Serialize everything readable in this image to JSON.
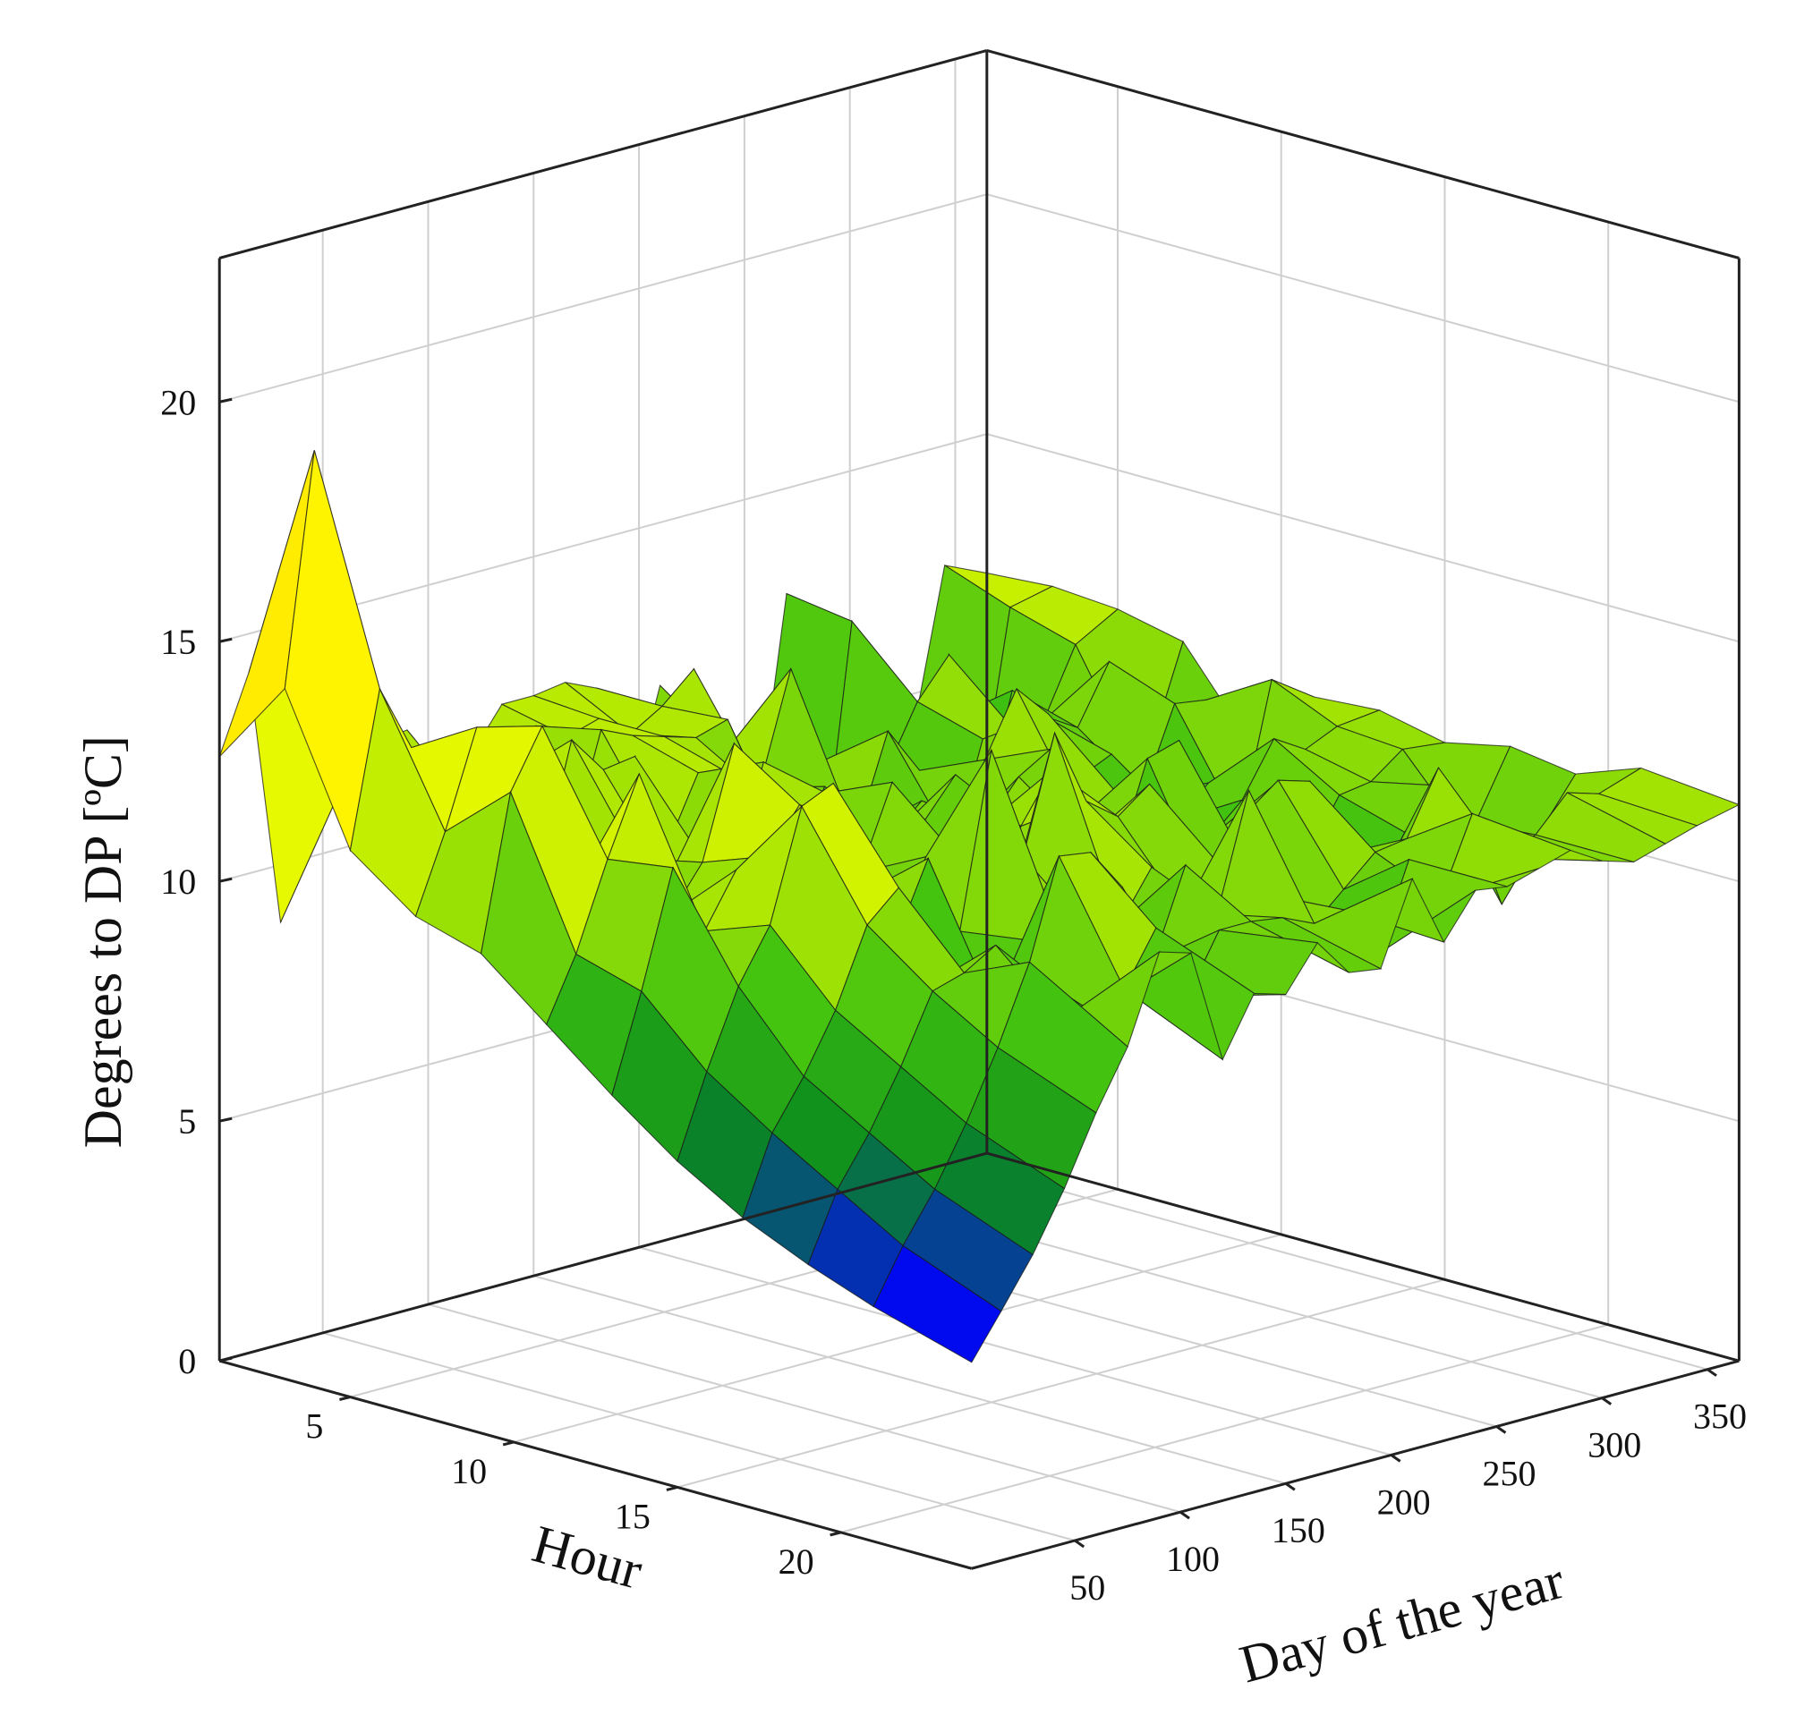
{
  "chart_data": {
    "type": "surface3d",
    "title": "",
    "axes": {
      "x": {
        "label": "Day of the year",
        "ticks": [
          50,
          100,
          150,
          200,
          250,
          300,
          350
        ],
        "range": [
          1,
          365
        ]
      },
      "y": {
        "label": "Hour",
        "ticks": [
          5,
          10,
          15,
          20
        ],
        "range": [
          1,
          24
        ]
      },
      "z": {
        "label": "Degrees to DP [ºC]",
        "ticks": [
          0,
          5,
          10,
          15,
          20
        ],
        "range": [
          0,
          23
        ]
      }
    },
    "colormap": [
      "#1a0050",
      "#0000ff",
      "#0a8a1e",
      "#3cc010",
      "#c8f000",
      "#ffff00",
      "#ff9a00",
      "#ff3a00"
    ],
    "grid": true,
    "surface": {
      "day_samples": [
        1,
        15,
        30,
        45,
        60,
        75,
        90,
        105,
        120,
        135,
        150,
        165,
        180,
        195,
        210,
        225,
        240,
        255,
        270,
        285,
        300,
        315,
        330,
        345,
        365
      ],
      "hour_samples": [
        1,
        3,
        5,
        7,
        9,
        11,
        13,
        15,
        17,
        19,
        21,
        24
      ],
      "values": [
        [
          12.6,
          14.2,
          8.8,
          13.6,
          11.5,
          12.0,
          12.1,
          9.6,
          11.2,
          12.1,
          12.1,
          12.2,
          11.9,
          9.2,
          11.6,
          10.4,
          7.8,
          8.0,
          12.8,
          8.6,
          6.6,
          10.2,
          9.2,
          12.5,
          12.1
        ],
        [
          14.4,
          19.2,
          12.2,
          10.6,
          12.1,
          12.2,
          10.8,
          10.6,
          12.2,
          11.8,
          12.0,
          11.5,
          11.9,
          12.5,
          10.6,
          9.8,
          8.0,
          7.2,
          12.6,
          8.2,
          9.8,
          10.0,
          8.0,
          12.0,
          12.2
        ],
        [
          11.4,
          14.6,
          13.2,
          12.4,
          11.6,
          12.0,
          11.2,
          10.2,
          12.5,
          12.2,
          12.0,
          11.8,
          12.0,
          10.4,
          12.7,
          10.6,
          9.4,
          10.0,
          11.3,
          12.1,
          8.4,
          11.0,
          10.2,
          11.6,
          12.1
        ],
        [
          10.4,
          12.0,
          14.0,
          13.8,
          10.6,
          13.2,
          12.4,
          12.5,
          10.4,
          11.8,
          11.6,
          11.0,
          9.4,
          10.8,
          9.6,
          11.6,
          10.6,
          8.6,
          10.9,
          10.9,
          11.0,
          10.6,
          11.8,
          9.2,
          11.8
        ],
        [
          10.0,
          13.2,
          14.4,
          10.8,
          11.4,
          11.1,
          10.5,
          10.8,
          10.1,
          12.4,
          9.8,
          11.4,
          10.6,
          10.1,
          10.7,
          9.6,
          11.2,
          12.5,
          11.8,
          10.3,
          10.6,
          9.6,
          11.3,
          11.2,
          10.1
        ],
        [
          8.9,
          10.2,
          12.0,
          13.6,
          10.5,
          11.4,
          13.7,
          8.6,
          11.8,
          12.1,
          10.3,
          12.0,
          11.0,
          11.8,
          10.6,
          11.4,
          11.8,
          10.2,
          10.6,
          9.7,
          9.6,
          10.2,
          9.1,
          12.0,
          11.4
        ],
        [
          7.8,
          9.8,
          12.2,
          10.7,
          11.8,
          11.9,
          12.8,
          12.3,
          10.6,
          9.6,
          11.0,
          10.8,
          8.1,
          11.1,
          12.1,
          10.4,
          9.8,
          11.8,
          12.0,
          9.8,
          10.4,
          11.5,
          11.1,
          11.4,
          11.5
        ],
        [
          6.8,
          8.5,
          10.1,
          11.2,
          13.5,
          13.8,
          11.9,
          10.2,
          11.7,
          10.0,
          13.6,
          11.2,
          13.6,
          12.0,
          11.5,
          12.0,
          9.4,
          9.1,
          9.9,
          11.3,
          9.6,
          10.7,
          10.8,
          11.3,
          11.2
        ],
        [
          6.0,
          7.6,
          8.6,
          9.8,
          11.4,
          12.0,
          9.8,
          8.8,
          9.0,
          10.2,
          10.3,
          10.0,
          10.0,
          11.0,
          9.9,
          10.8,
          11.6,
          12.1,
          11.9,
          10.2,
          9.2,
          10.3,
          11.1,
          9.8,
          11.5
        ],
        [
          5.4,
          6.8,
          7.8,
          9.0,
          10.4,
          10.6,
          11.0,
          10.3,
          12.5,
          12.4,
          11.5,
          9.8,
          11.6,
          10.4,
          12.8,
          10.4,
          9.6,
          10.2,
          10.8,
          10.9,
          12.2,
          10.9,
          9.0,
          10.1,
          11.3
        ],
        [
          4.9,
          6.0,
          7.0,
          8.2,
          9.6,
          11.2,
          9.8,
          9.8,
          10.1,
          11.2,
          9.6,
          10.8,
          10.8,
          10.7,
          10.4,
          10.5,
          9.4,
          11.2,
          10.2,
          11.8,
          10.7,
          11.0,
          11.7,
          11.5,
          11.8
        ],
        [
          4.3,
          5.2,
          6.2,
          7.4,
          8.8,
          10.0,
          11.8,
          11.6,
          9.2,
          10.4,
          10.2,
          11.1,
          10.3,
          10.2,
          11.9,
          10.4,
          11.3,
          11.2,
          11.4,
          11.6,
          11.2,
          11.0,
          11.2,
          11.4,
          11.6
        ]
      ]
    }
  }
}
